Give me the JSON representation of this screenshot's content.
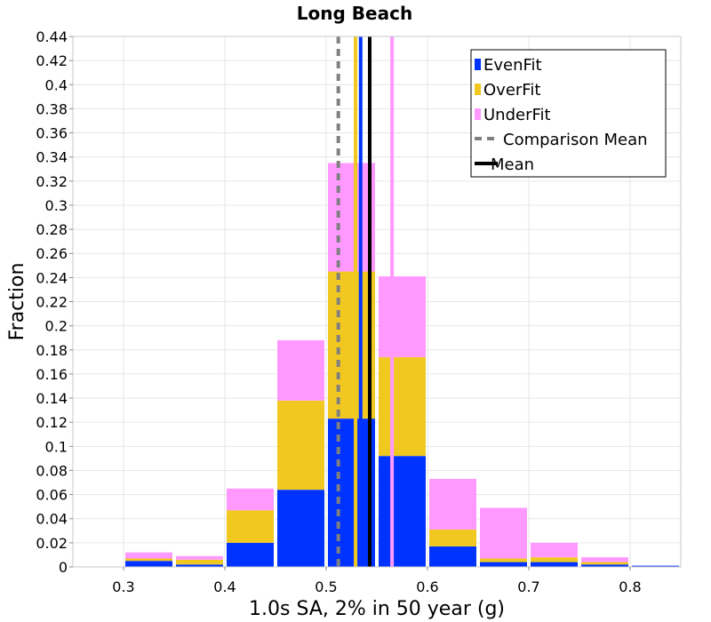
{
  "chart_data": {
    "type": "bar",
    "stacked": true,
    "title": "Long Beach",
    "xlabel": "1.0s SA, 2% in 50 year (g)",
    "ylabel": "Fraction",
    "xlim": [
      0.25,
      0.85
    ],
    "ylim": [
      0,
      0.44
    ],
    "x_ticks": [
      "0.3",
      "0.4",
      "0.5",
      "0.6",
      "0.7",
      "0.8"
    ],
    "y_ticks": [
      "0",
      "0.02",
      "0.04",
      "0.06",
      "0.08",
      "0.1",
      "0.12",
      "0.14",
      "0.16",
      "0.18",
      "0.2",
      "0.22",
      "0.24",
      "0.26",
      "0.28",
      "0.3",
      "0.32",
      "0.34",
      "0.36",
      "0.38",
      "0.4",
      "0.42",
      "0.44"
    ],
    "bin_width": 0.05,
    "bin_centers": [
      0.275,
      0.325,
      0.375,
      0.425,
      0.475,
      0.525,
      0.575,
      0.625,
      0.675,
      0.725,
      0.775,
      0.825
    ],
    "series": [
      {
        "name": "EvenFit",
        "color": "#0033ff",
        "values": [
          0.0,
          0.005,
          0.002,
          0.02,
          0.064,
          0.123,
          0.092,
          0.017,
          0.004,
          0.004,
          0.002,
          0.001
        ]
      },
      {
        "name": "OverFit",
        "color": "#f0c820",
        "values": [
          0.0,
          0.002,
          0.004,
          0.027,
          0.074,
          0.122,
          0.082,
          0.014,
          0.003,
          0.004,
          0.002,
          0.0
        ]
      },
      {
        "name": "UnderFit",
        "color": "#ff99ff",
        "values": [
          0.0,
          0.005,
          0.003,
          0.018,
          0.05,
          0.09,
          0.067,
          0.042,
          0.042,
          0.012,
          0.004,
          0.0
        ]
      }
    ],
    "mean_lines": [
      {
        "name": "EvenFit mean",
        "series": "EvenFit",
        "x": 0.534,
        "color": "#0033ff",
        "style": "solid"
      },
      {
        "name": "OverFit mean",
        "series": "OverFit",
        "x": 0.529,
        "color": "#f0c820",
        "style": "solid"
      },
      {
        "name": "UnderFit mean",
        "series": "UnderFit",
        "x": 0.565,
        "color": "#ff99ff",
        "style": "solid"
      },
      {
        "name": "Comparison Mean",
        "x": 0.512,
        "color": "#808080",
        "style": "dashed"
      },
      {
        "name": "Mean",
        "x": 0.543,
        "color": "#000000",
        "style": "solid"
      }
    ],
    "legend": {
      "position": "top-right",
      "entries": [
        {
          "label": "EvenFit",
          "color": "#0033ff",
          "kind": "box"
        },
        {
          "label": "OverFit",
          "color": "#f0c820",
          "kind": "box"
        },
        {
          "label": "UnderFit",
          "color": "#ff99ff",
          "kind": "box"
        },
        {
          "label": "Comparison Mean",
          "color": "#808080",
          "kind": "dashed"
        },
        {
          "label": "Mean",
          "color": "#000000",
          "kind": "solid"
        }
      ]
    }
  }
}
